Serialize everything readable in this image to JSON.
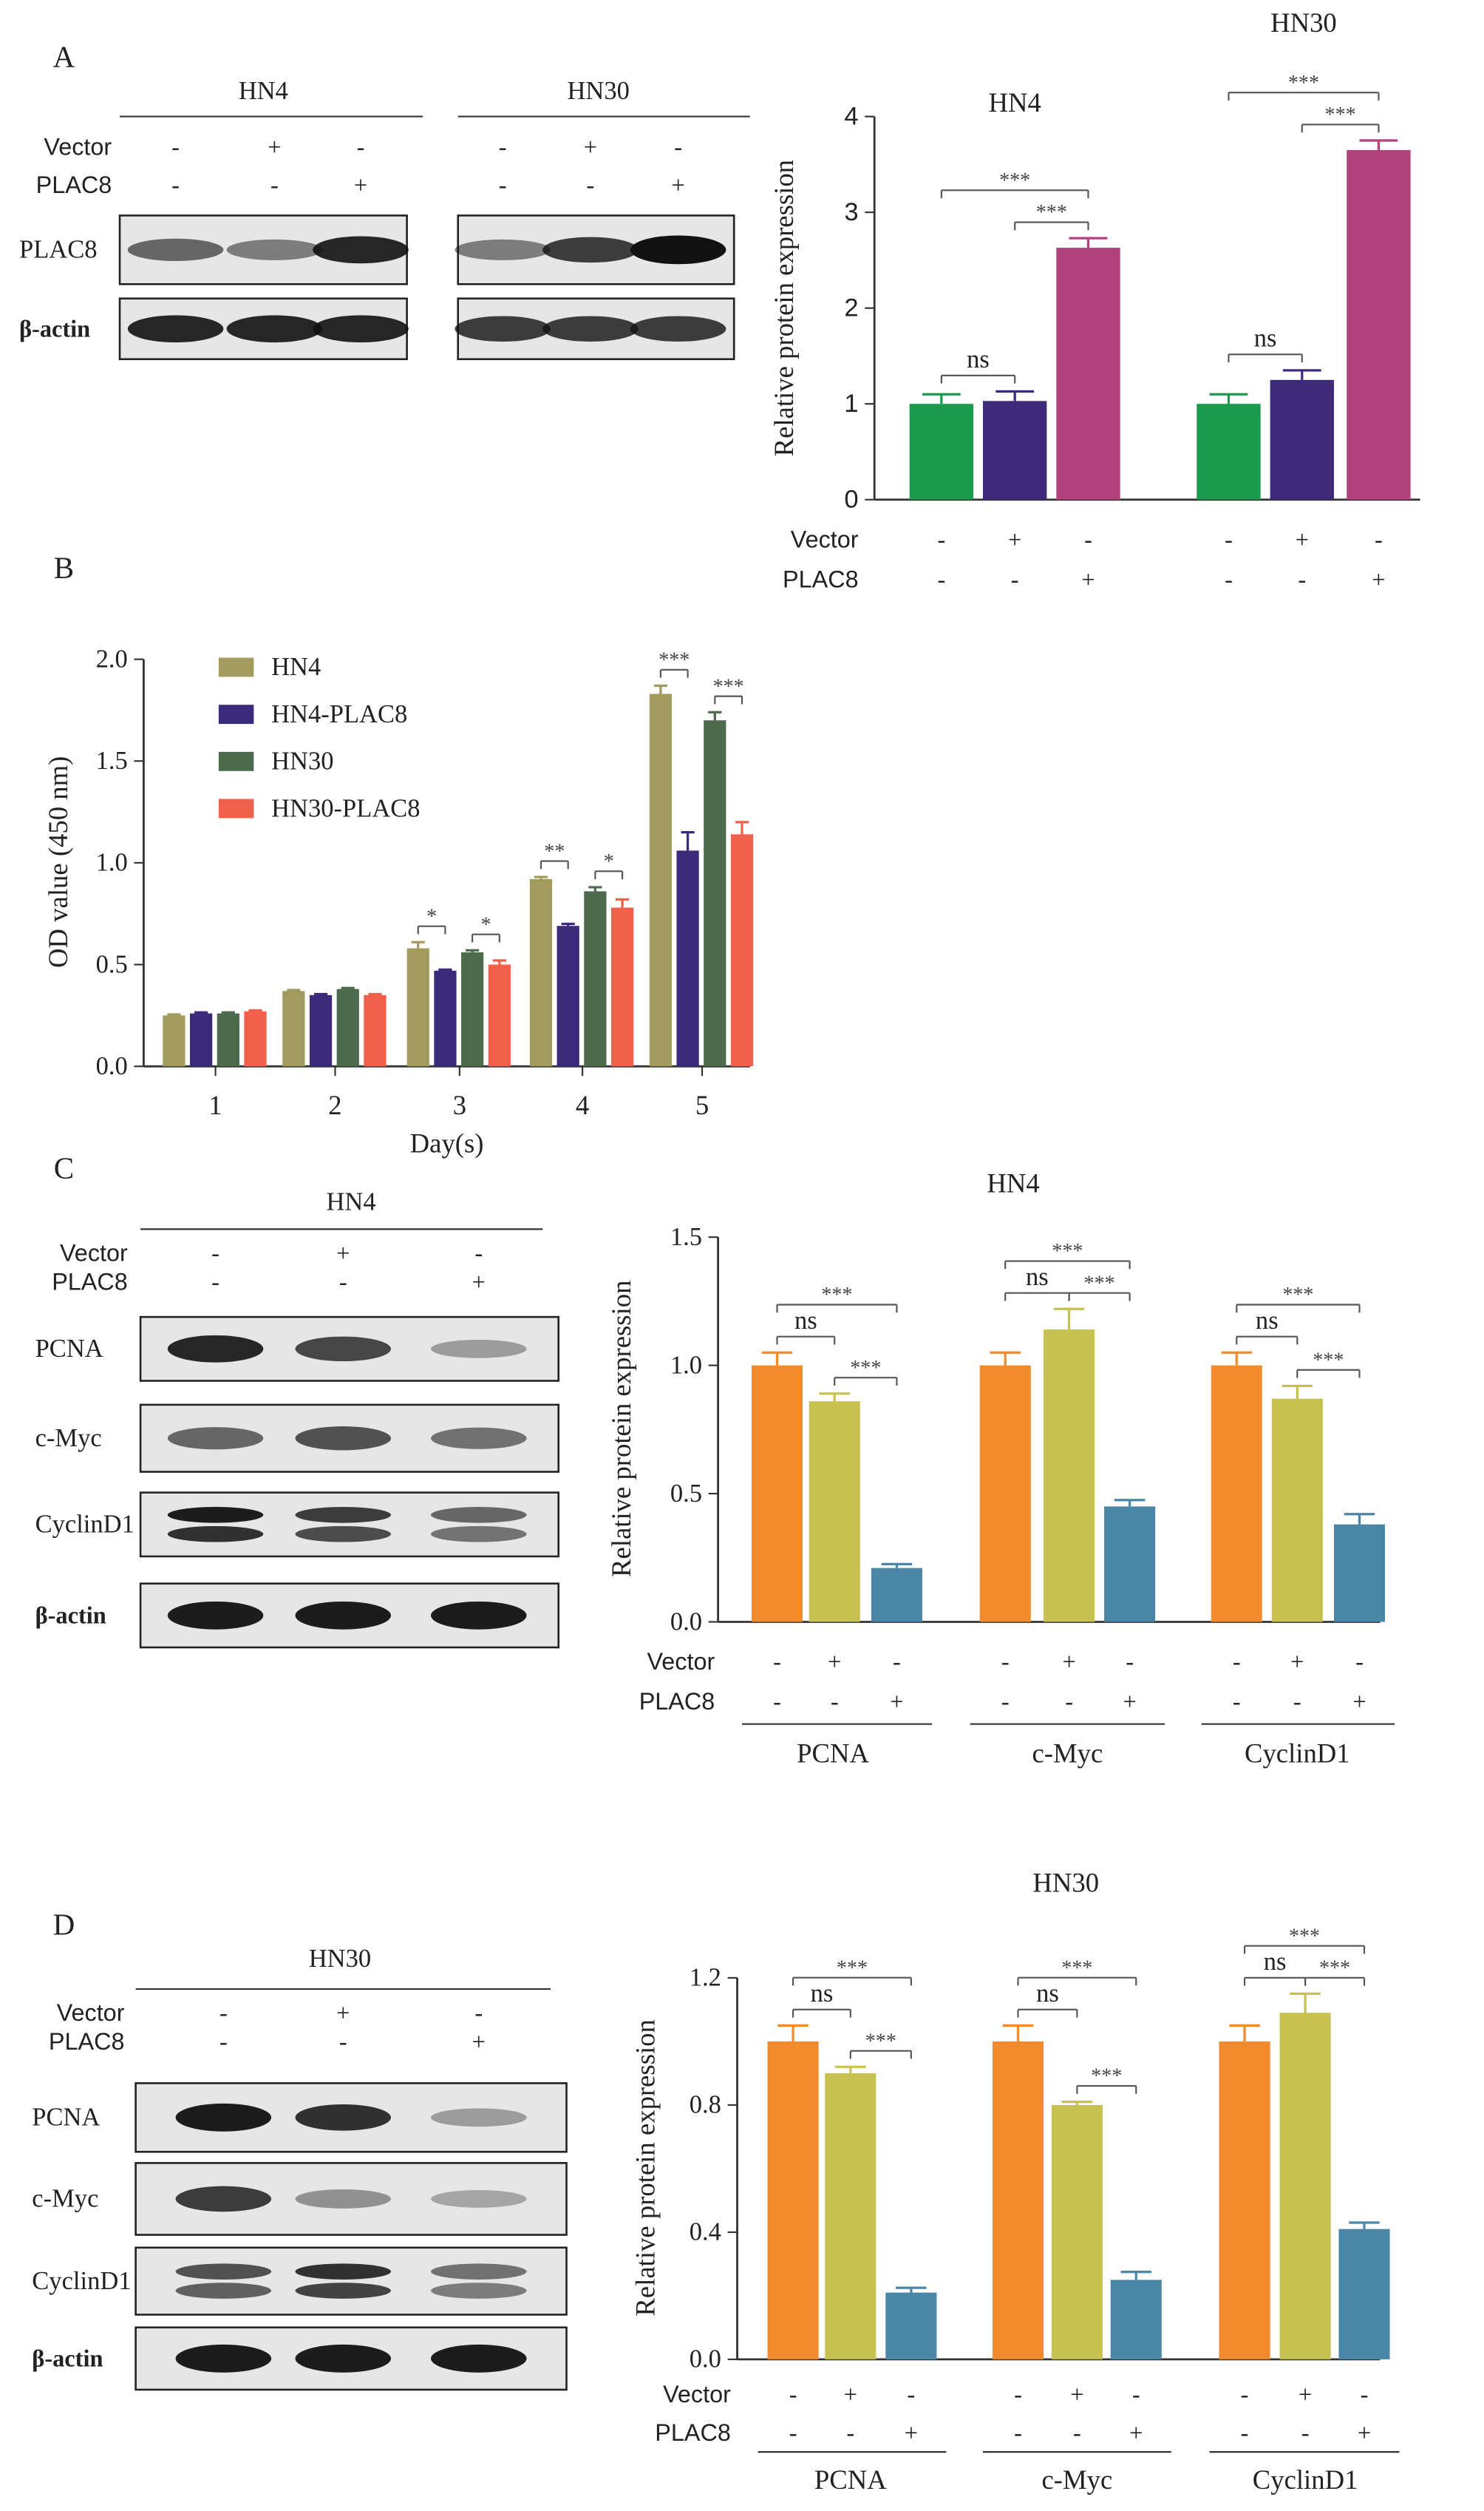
{
  "panels": [
    "A",
    "B",
    "C",
    "D"
  ],
  "blots": [
    {
      "groups": [
        "HN4",
        "HN30"
      ],
      "conditions": [
        {
          "label": "Vector",
          "signs": [
            "-",
            "+",
            "-"
          ]
        },
        {
          "label": "PLAC8",
          "signs": [
            "-",
            "-",
            "+"
          ]
        }
      ],
      "proteins": [
        "PLAC8",
        "β-actin"
      ]
    },
    {
      "groups": [
        "HN4"
      ],
      "conditions": [
        {
          "label": "Vector",
          "signs": [
            "-",
            "+",
            "-"
          ]
        },
        {
          "label": "PLAC8",
          "signs": [
            "-",
            "-",
            "+"
          ]
        }
      ],
      "proteins": [
        "PCNA",
        "c-Myc",
        "CyclinD1",
        "β-actin"
      ]
    },
    {
      "groups": [
        "HN30"
      ],
      "conditions": [
        {
          "label": "Vector",
          "signs": [
            "-",
            "+",
            "-"
          ]
        },
        {
          "label": "PLAC8",
          "signs": [
            "-",
            "-",
            "+"
          ]
        }
      ],
      "proteins": [
        "PCNA",
        "c-Myc",
        "CyclinD1",
        "β-actin"
      ]
    }
  ],
  "chart_data": [
    {
      "type": "bar",
      "categories": [
        "HN4",
        "HN30"
      ],
      "ylabel": "Relative protein expression",
      "ylim": [
        0,
        4
      ],
      "yticks": [
        0,
        1,
        2,
        3,
        4
      ],
      "series": [
        {
          "color": "#1a9a4a",
          "values": [
            1.0,
            1.0
          ],
          "errors": [
            0.1,
            0.1
          ]
        },
        {
          "color": "#3d2a7a",
          "values": [
            1.03,
            1.25
          ],
          "errors": [
            0.1,
            0.1
          ]
        },
        {
          "color": "#b0417a",
          "values": [
            2.63,
            3.65
          ],
          "errors": [
            0.1,
            0.1
          ]
        }
      ],
      "conditions": [
        {
          "label": "Vector",
          "signs": [
            "-",
            "+",
            "-"
          ]
        },
        {
          "label": "PLAC8",
          "signs": [
            "-",
            "-",
            "+"
          ]
        }
      ],
      "significance": [
        [
          "ns",
          "***",
          "***"
        ],
        [
          "ns",
          "***",
          "***"
        ]
      ]
    },
    {
      "type": "bar",
      "categories": [
        "1",
        "2",
        "3",
        "4",
        "5"
      ],
      "xlabel": "Day(s)",
      "ylabel": "OD value (450 nm)",
      "ylim": [
        0,
        2
      ],
      "yticks": [
        {
          "value": 0,
          "label": "0.0"
        },
        {
          "value": 0.5,
          "label": "0.5"
        },
        {
          "value": 1,
          "label": "1.0"
        },
        {
          "value": 1.5,
          "label": "1.5"
        },
        {
          "value": 2,
          "label": "2.0"
        }
      ],
      "legend": "upper left",
      "series": [
        {
          "name": "HN4",
          "color": "#a39b5d",
          "values": [
            0.25,
            0.37,
            0.58,
            0.92,
            1.83
          ],
          "errors": [
            0.005,
            0.005,
            0.03,
            0.01,
            0.04
          ]
        },
        {
          "name": "HN4-PLAC8",
          "color": "#3b2a7a",
          "values": [
            0.26,
            0.35,
            0.47,
            0.69,
            1.06
          ],
          "errors": [
            0.005,
            0.005,
            0.005,
            0.01,
            0.09
          ]
        },
        {
          "name": "HN30",
          "color": "#4c6b4c",
          "values": [
            0.26,
            0.38,
            0.56,
            0.86,
            1.7
          ],
          "errors": [
            0.005,
            0.005,
            0.01,
            0.02,
            0.04
          ]
        },
        {
          "name": "HN30-PLAC8",
          "color": "#f0604a",
          "values": [
            0.27,
            0.35,
            0.5,
            0.78,
            1.14
          ],
          "errors": [
            0.005,
            0.005,
            0.02,
            0.04,
            0.06
          ]
        }
      ],
      "significance": [
        [],
        [],
        [
          "*",
          "*"
        ],
        [
          "**",
          "*"
        ],
        [
          "***",
          "***"
        ]
      ]
    },
    {
      "type": "bar",
      "title": "HN4",
      "categories": [
        "PCNA",
        "c-Myc",
        "CyclinD1"
      ],
      "ylabel": "Relative protein expression",
      "ylim": [
        0,
        1.5
      ],
      "yticks": [
        {
          "value": 0,
          "label": "0.0"
        },
        {
          "value": 0.5,
          "label": "0.5"
        },
        {
          "value": 1,
          "label": "1.0"
        },
        {
          "value": 1.5,
          "label": "1.5"
        }
      ],
      "series": [
        {
          "color": "#f28a2e",
          "values": [
            1.0,
            1.0,
            1.0
          ],
          "errors": [
            0.05,
            0.05,
            0.05
          ]
        },
        {
          "color": "#c8c050",
          "values": [
            0.86,
            1.14,
            0.87
          ],
          "errors": [
            0.03,
            0.08,
            0.05
          ]
        },
        {
          "color": "#4a86a8",
          "values": [
            0.21,
            0.45,
            0.38
          ],
          "errors": [
            0.015,
            0.025,
            0.04
          ]
        }
      ],
      "conditions": [
        {
          "label": "Vector",
          "signs": [
            "-",
            "+",
            "-"
          ]
        },
        {
          "label": "PLAC8",
          "signs": [
            "-",
            "-",
            "+"
          ]
        }
      ],
      "significance": [
        [
          "ns",
          "***",
          "***"
        ],
        [
          "ns",
          "***",
          "***"
        ],
        [
          "ns",
          "***",
          "***"
        ]
      ]
    },
    {
      "type": "bar",
      "title": "HN30",
      "categories": [
        "PCNA",
        "c-Myc",
        "CyclinD1"
      ],
      "ylabel": "Relative protein expression",
      "ylim": [
        0,
        1.2
      ],
      "yticks": [
        {
          "value": 0,
          "label": "0.0"
        },
        {
          "value": 0.4,
          "label": "0.4"
        },
        {
          "value": 0.8,
          "label": "0.8"
        },
        {
          "value": 1.2,
          "label": "1.2"
        }
      ],
      "series": [
        {
          "color": "#f28a2e",
          "values": [
            1.0,
            1.0,
            1.0
          ],
          "errors": [
            0.05,
            0.05,
            0.05
          ]
        },
        {
          "color": "#c8c050",
          "values": [
            0.9,
            0.8,
            1.09
          ],
          "errors": [
            0.02,
            0.01,
            0.06
          ]
        },
        {
          "color": "#4a86a8",
          "values": [
            0.21,
            0.25,
            0.41
          ],
          "errors": [
            0.015,
            0.025,
            0.02
          ]
        }
      ],
      "conditions": [
        {
          "label": "Vector",
          "signs": [
            "-",
            "+",
            "-"
          ]
        },
        {
          "label": "PLAC8",
          "signs": [
            "-",
            "-",
            "+"
          ]
        }
      ],
      "significance": [
        [
          "ns",
          "***",
          "***"
        ],
        [
          "ns",
          "***",
          "***"
        ],
        [
          "ns",
          "***",
          "***"
        ]
      ]
    }
  ]
}
